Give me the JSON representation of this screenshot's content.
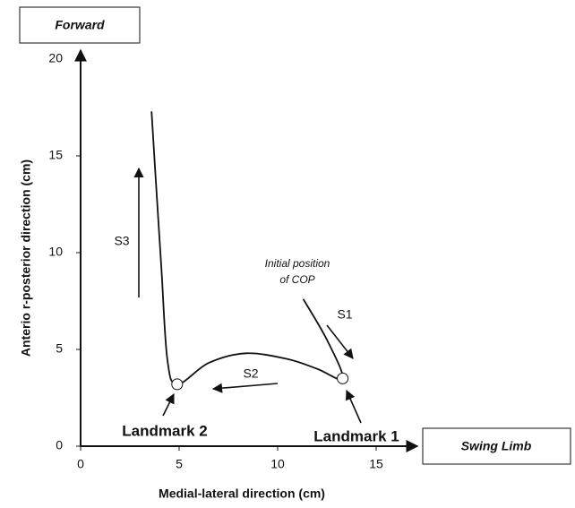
{
  "chart_data": {
    "type": "line",
    "x_label": "Medial-lateral direction (cm)",
    "y_label": "Anterio r-posterior direction (cm)",
    "x_axis_end_label": "Swing Limb",
    "y_axis_end_label": "Forward",
    "x": [
      11.3,
      12.5,
      13.3,
      12.0,
      10.5,
      8.4,
      6.5,
      4.9,
      4.4,
      4.1,
      3.8,
      3.6
    ],
    "y": [
      7.6,
      5.5,
      3.5,
      4.0,
      4.5,
      4.8,
      4.3,
      3.2,
      4.5,
      9.2,
      14,
      17.3
    ],
    "color": "#111111",
    "xlim": [
      0,
      17
    ],
    "xticks": [
      0,
      5,
      10,
      15
    ],
    "ylim": [
      0,
      20.6
    ],
    "yticks": [
      0,
      5,
      10,
      15,
      20
    ],
    "grid": false,
    "annotations": {
      "initial_line1": "Initial position",
      "initial_line2": "of COP",
      "s1": "S1",
      "s2": "S2",
      "s3": "S3",
      "landmark1": "Landmark 1",
      "landmark2": "Landmark 2"
    }
  }
}
